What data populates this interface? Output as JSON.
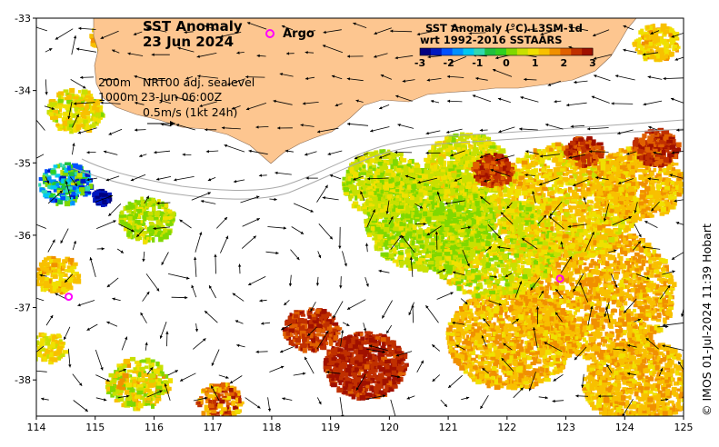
{
  "title": {
    "line1": "SST Anomaly",
    "line2": "23 Jun 2024"
  },
  "argo_legend": {
    "label": "Argo",
    "color": "#ff00ff"
  },
  "colorbar": {
    "title_line1": "SST Anomaly (°C) L3SM-1d",
    "title_line2": "wrt 1992-2016 SSTAARS",
    "ticks": [
      "-3",
      "-2",
      "-1",
      "0",
      "1",
      "2",
      "3"
    ],
    "colors": [
      "#000080",
      "#0018c0",
      "#0050ff",
      "#0090ff",
      "#00c8f0",
      "#30d8b0",
      "#20c040",
      "#30d020",
      "#80d800",
      "#c8e000",
      "#f0e000",
      "#f8c000",
      "#f09000",
      "#e06000",
      "#c03000",
      "#a01000"
    ]
  },
  "annotations": {
    "depth_200": "200m",
    "depth_1000": "1000m",
    "product": "NRT00 adj. sealevel",
    "time": "23-Jun 06:00Z",
    "scale": "0.5m/s (1kt 24h)"
  },
  "axes": {
    "x_ticks": [
      "114",
      "115",
      "116",
      "117",
      "118",
      "119",
      "120",
      "121",
      "122",
      "123",
      "124",
      "125"
    ],
    "y_ticks": [
      "-33",
      "-34",
      "-35",
      "-36",
      "-37",
      "-38"
    ],
    "xlim": [
      114,
      125
    ],
    "ylim": [
      -38.5,
      -33
    ]
  },
  "argo_floats": [
    {
      "lon": 114.55,
      "lat": -36.85
    },
    {
      "lon": 122.9,
      "lat": -36.6
    }
  ],
  "credit": "© IMOS 01-Jul-2024 11:39 Hobart",
  "colors": {
    "land": "#fdc690",
    "sea": "#ffffff",
    "contour": "#a9a9a9"
  }
}
